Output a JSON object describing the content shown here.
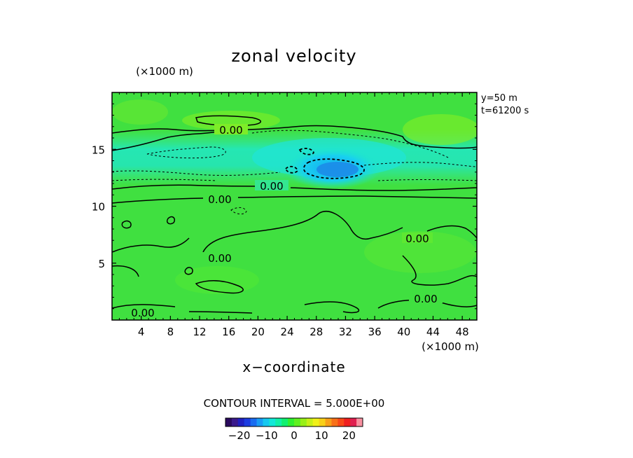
{
  "chart_data": {
    "type": "heatmap",
    "title": "zonal velocity",
    "xlabel": "x−coordinate",
    "x_unit": "(×1000 m)",
    "y_unit": "(×1000 m)",
    "xlim": [
      0,
      50
    ],
    "ylim": [
      0,
      20
    ],
    "x_ticks": [
      4,
      8,
      12,
      16,
      20,
      24,
      28,
      32,
      36,
      40,
      44,
      48
    ],
    "y_ticks": [
      5,
      10,
      15
    ],
    "info_lines": [
      "y=50  m",
      "t=61200  s"
    ],
    "contour_interval_text": "CONTOUR INTERVAL = 5.000E+00",
    "contour_labels": [
      "0.00",
      "0.00",
      "0.00",
      "0.00",
      "0.00",
      "0.00",
      "0.00"
    ],
    "colorbar": {
      "range": [
        -25,
        25
      ],
      "tick_values": [
        -20,
        -10,
        0,
        10,
        20
      ],
      "tick_labels": [
        "−20",
        "−10",
        "0",
        "10",
        "20"
      ],
      "colors": [
        "#2a0a5e",
        "#3a1a8c",
        "#2020c0",
        "#1c3ce0",
        "#1a6cf0",
        "#1a9cf5",
        "#16c8f0",
        "#12e8d8",
        "#10f0a8",
        "#10f070",
        "#30f030",
        "#60f020",
        "#98f018",
        "#c8f018",
        "#f0f018",
        "#f8d018",
        "#f8a018",
        "#f87018",
        "#f84818",
        "#f02020",
        "#e02050",
        "#f890a0"
      ]
    }
  }
}
